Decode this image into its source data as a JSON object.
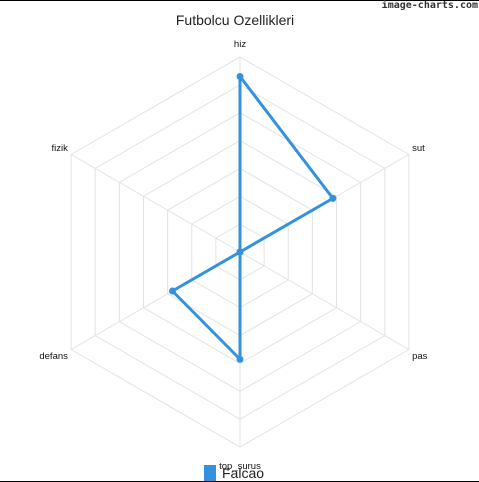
{
  "watermark": "image-charts.com",
  "chart_data": {
    "type": "radar",
    "title": "Futbolcu Ozellikleri",
    "categories": [
      "hiz",
      "sut",
      "pas",
      "top_surus",
      "defans",
      "fizik"
    ],
    "series": [
      {
        "name": "Falcao",
        "color": "#3492dc",
        "values": [
          90,
          55,
          0,
          55,
          40,
          0
        ]
      }
    ],
    "r_range": [
      0,
      100
    ],
    "grid_levels": 7,
    "grid": true,
    "legend_position": "bottom"
  }
}
